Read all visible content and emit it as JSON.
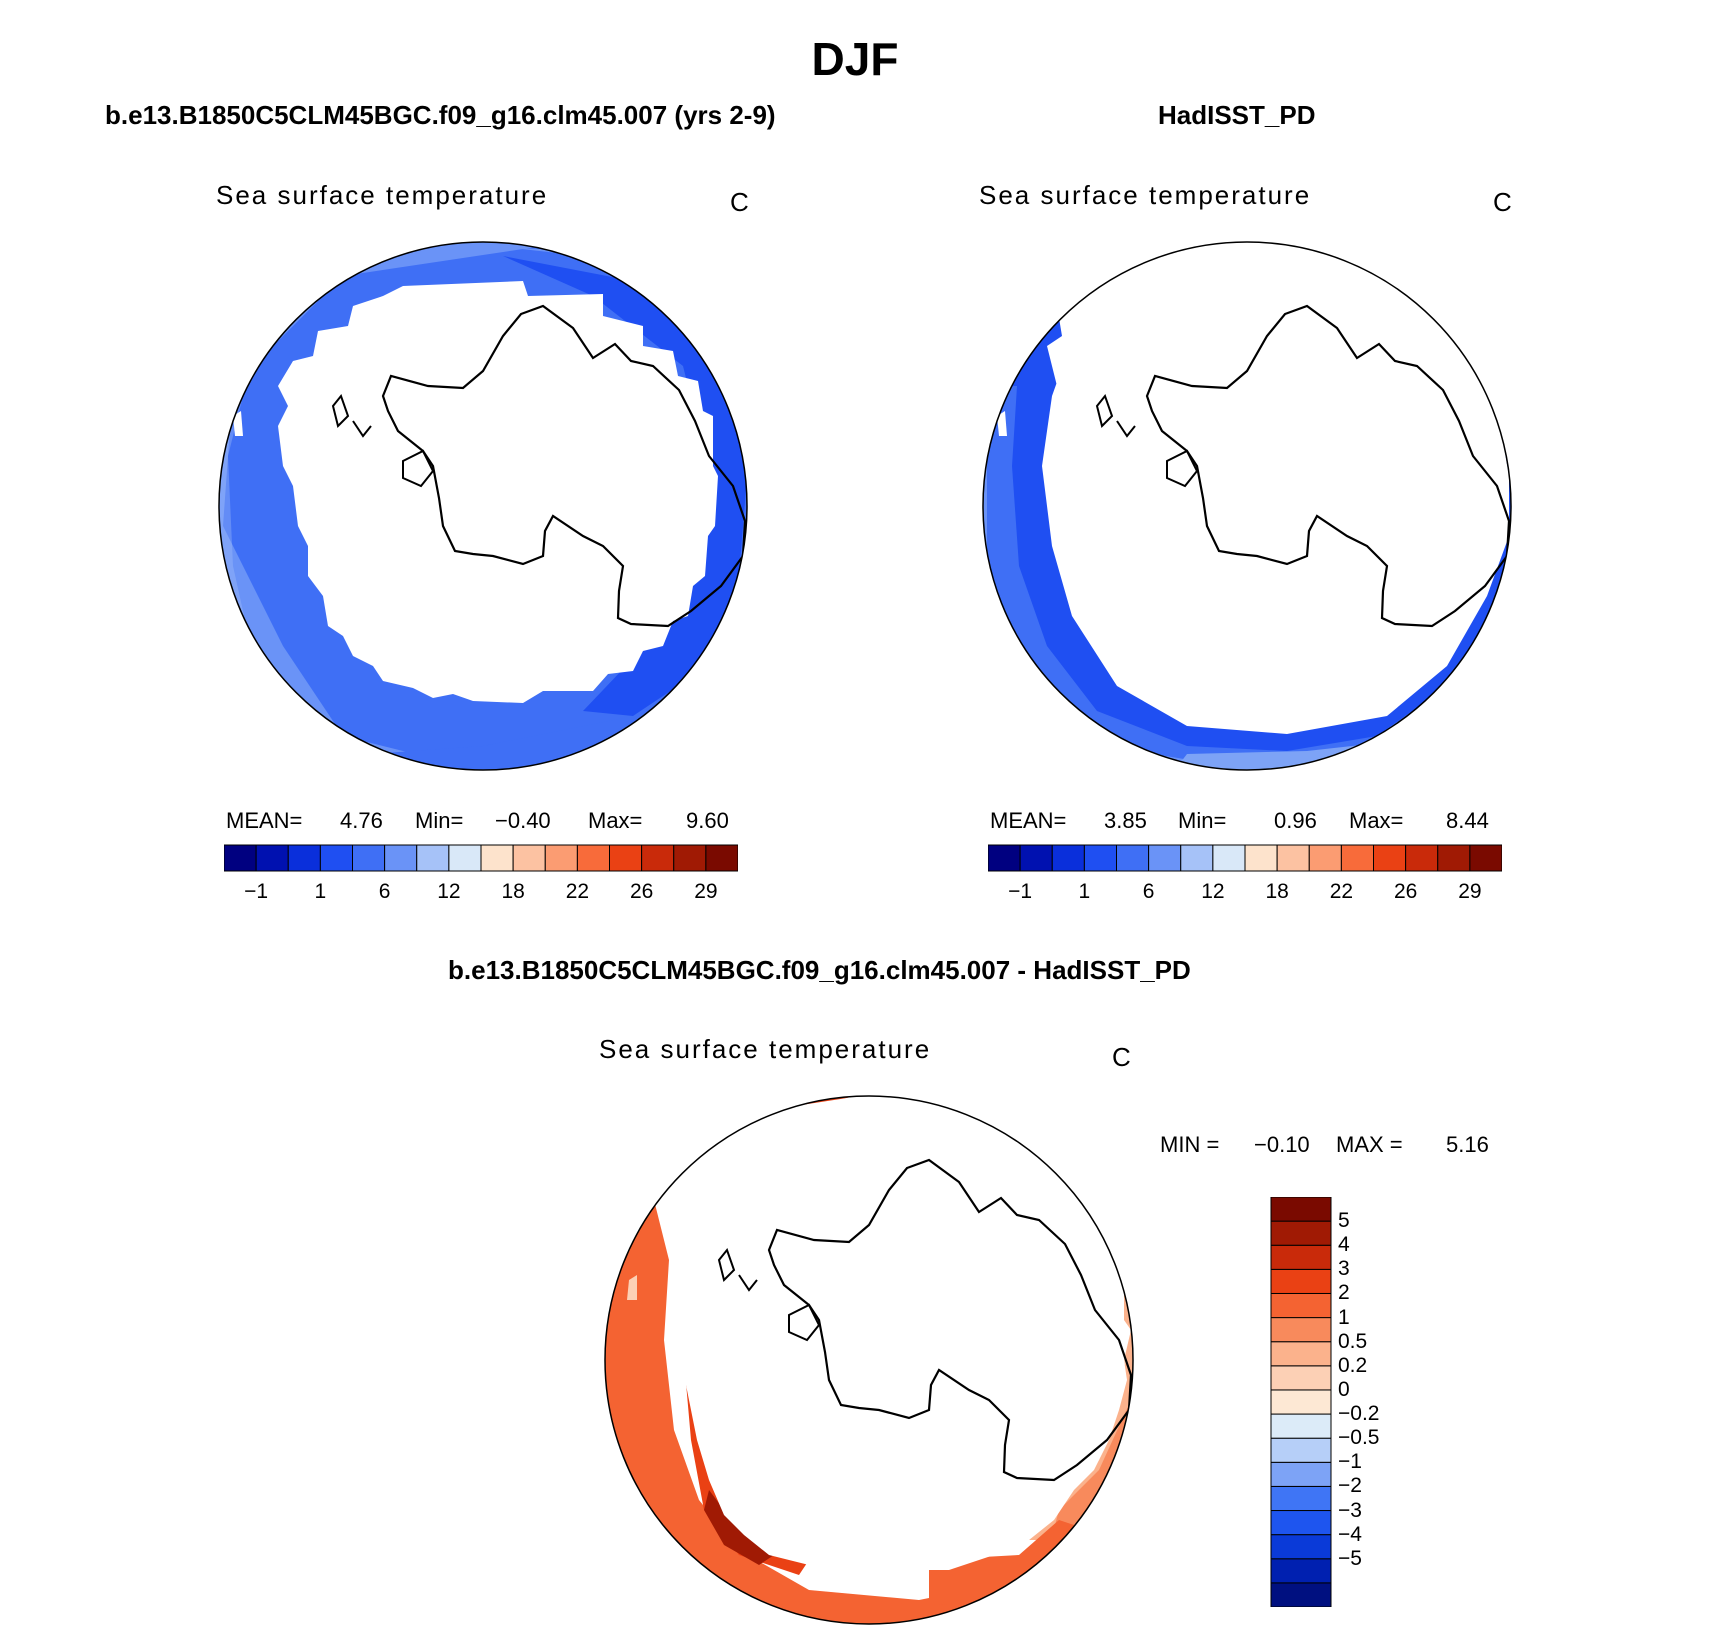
{
  "figure": {
    "title": "DJF"
  },
  "model_panel": {
    "case_title": "b.e13.B1850C5CLM45BGC.f09_g16.clm45.007 (yrs 2-9)",
    "variable": "Sea surface temperature",
    "units": "C",
    "stats": {
      "mean_label": "MEAN=",
      "mean": "4.76",
      "min_label": "Min=",
      "min": "−0.40",
      "max_label": "Max=",
      "max": "9.60"
    }
  },
  "obs_panel": {
    "case_title": "HadISST_PD",
    "variable": "Sea surface temperature",
    "units": "C",
    "stats": {
      "mean_label": "MEAN=",
      "mean": "3.85",
      "min_label": "Min=",
      "min": "0.96",
      "max_label": "Max=",
      "max": "8.44"
    }
  },
  "diff_panel": {
    "case_title": "b.e13.B1850C5CLM45BGC.f09_g16.clm45.007 - HadISST_PD",
    "variable": "Sea surface temperature",
    "units": "C",
    "stats": {
      "min_label": "MIN =",
      "min": "−0.10",
      "max_label": "MAX =",
      "max": "5.16"
    }
  },
  "abs_colorbar": {
    "colors": [
      "#000080",
      "#0011b0",
      "#0a2fdb",
      "#1f4ff2",
      "#3f6ff5",
      "#6a93f7",
      "#a6c2f8",
      "#d9e8f8",
      "#fde3cc",
      "#fcc2a2",
      "#fb9c72",
      "#f86b3a",
      "#ea4114",
      "#c92a0a",
      "#a01a04",
      "#7a0a00"
    ],
    "tick_labels": [
      "−1",
      "1",
      "6",
      "12",
      "18",
      "22",
      "26",
      "29"
    ]
  },
  "diff_colorbar": {
    "colors": [
      "#001080",
      "#0020b0",
      "#0a3ad8",
      "#1e55ef",
      "#3f75f5",
      "#7da3f6",
      "#b6cff8",
      "#dcebf8",
      "#fde8d4",
      "#fcd0b5",
      "#fbb28c",
      "#f88a5c",
      "#f46332",
      "#ea4114",
      "#c92a0a",
      "#a01a04",
      "#7a0a00"
    ],
    "tick_labels": [
      "5",
      "4",
      "3",
      "2",
      "1",
      "0.5",
      "0.2",
      "0",
      "−0.2",
      "−0.5",
      "−1",
      "−2",
      "−3",
      "−4",
      "−5"
    ]
  }
}
